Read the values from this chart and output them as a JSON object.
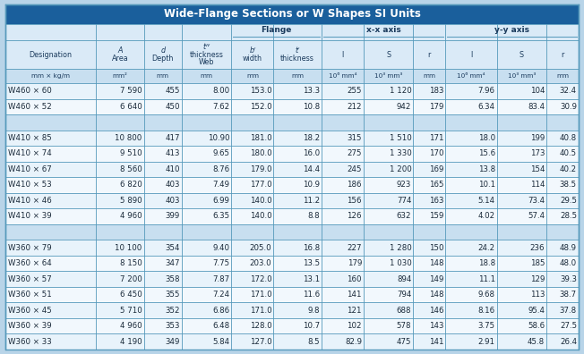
{
  "title": "Wide-Flange Sections or W Shapes SI Units",
  "title_bg": "#1a5f9c",
  "title_fg": "white",
  "header_bg": "#daeaf7",
  "header_fg": "#1a3a5c",
  "units_bg": "#c8dff0",
  "row_bg_A": "#e8f3fb",
  "row_bg_B": "#f2f8fd",
  "sep_bg": "#c8dff0",
  "border_color": "#5599bb",
  "fig_bg": "#b8d4e8",
  "col_alignments": [
    "left",
    "right",
    "right",
    "right",
    "right",
    "right",
    "right",
    "right",
    "right",
    "right",
    "right",
    "right"
  ],
  "col_units": [
    "mm × kg/m",
    "mm²",
    "mm",
    "mm",
    "mm",
    "mm",
    "10⁶ mm⁴",
    "10³ mm³",
    "mm",
    "10⁶ mm⁴",
    "10³ mm³",
    "mm"
  ],
  "flange_span": [
    4,
    6
  ],
  "xx_span": [
    6,
    9
  ],
  "yy_span": [
    9,
    12
  ],
  "rows": [
    [
      "W460 × 60",
      "7 590",
      "455",
      "8.00",
      "153.0",
      "13.3",
      "255",
      "1 120",
      "183",
      "7.96",
      "104",
      "32.4"
    ],
    [
      "W460 × 52",
      "6 640",
      "450",
      "7.62",
      "152.0",
      "10.8",
      "212",
      "942",
      "179",
      "6.34",
      "83.4",
      "30.9"
    ],
    null,
    [
      "W410 × 85",
      "10 800",
      "417",
      "10.90",
      "181.0",
      "18.2",
      "315",
      "1 510",
      "171",
      "18.0",
      "199",
      "40.8"
    ],
    [
      "W410 × 74",
      "9 510",
      "413",
      "9.65",
      "180.0",
      "16.0",
      "275",
      "1 330",
      "170",
      "15.6",
      "173",
      "40.5"
    ],
    [
      "W410 × 67",
      "8 560",
      "410",
      "8.76",
      "179.0",
      "14.4",
      "245",
      "1 200",
      "169",
      "13.8",
      "154",
      "40.2"
    ],
    [
      "W410 × 53",
      "6 820",
      "403",
      "7.49",
      "177.0",
      "10.9",
      "186",
      "923",
      "165",
      "10.1",
      "114",
      "38.5"
    ],
    [
      "W410 × 46",
      "5 890",
      "403",
      "6.99",
      "140.0",
      "11.2",
      "156",
      "774",
      "163",
      "5.14",
      "73.4",
      "29.5"
    ],
    [
      "W410 × 39",
      "4 960",
      "399",
      "6.35",
      "140.0",
      "8.8",
      "126",
      "632",
      "159",
      "4.02",
      "57.4",
      "28.5"
    ],
    null,
    [
      "W360 × 79",
      "10 100",
      "354",
      "9.40",
      "205.0",
      "16.8",
      "227",
      "1 280",
      "150",
      "24.2",
      "236",
      "48.9"
    ],
    [
      "W360 × 64",
      "8 150",
      "347",
      "7.75",
      "203.0",
      "13.5",
      "179",
      "1 030",
      "148",
      "18.8",
      "185",
      "48.0"
    ],
    [
      "W360 × 57",
      "7 200",
      "358",
      "7.87",
      "172.0",
      "13.1",
      "160",
      "894",
      "149",
      "11.1",
      "129",
      "39.3"
    ],
    [
      "W360 × 51",
      "6 450",
      "355",
      "7.24",
      "171.0",
      "11.6",
      "141",
      "794",
      "148",
      "9.68",
      "113",
      "38.7"
    ],
    [
      "W360 × 45",
      "5 710",
      "352",
      "6.86",
      "171.0",
      "9.8",
      "121",
      "688",
      "146",
      "8.16",
      "95.4",
      "37.8"
    ],
    [
      "W360 × 39",
      "4 960",
      "353",
      "6.48",
      "128.0",
      "10.7",
      "102",
      "578",
      "143",
      "3.75",
      "58.6",
      "27.5"
    ],
    [
      "W360 × 33",
      "4 190",
      "349",
      "5.84",
      "127.0",
      "8.5",
      "82.9",
      "475",
      "141",
      "2.91",
      "45.8",
      "26.4"
    ]
  ],
  "col_widths_rel": [
    1.55,
    0.82,
    0.65,
    0.85,
    0.72,
    0.82,
    0.72,
    0.85,
    0.55,
    0.88,
    0.85,
    0.55
  ]
}
